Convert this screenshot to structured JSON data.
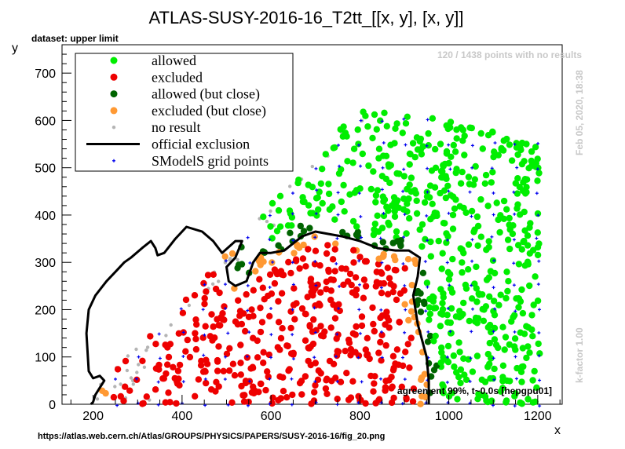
{
  "chart_data": {
    "type": "scatter",
    "title": "ATLAS-SUSY-2016-16_T2tt_[[x, y], [x, y]]",
    "subtitle": "dataset: upper limit",
    "xlabel": "x",
    "ylabel": "y",
    "xlim": [
      130,
      1255
    ],
    "ylim": [
      0,
      760
    ],
    "xticks": [
      200,
      400,
      600,
      800,
      1000,
      1200
    ],
    "yticks": [
      0,
      100,
      200,
      300,
      400,
      500,
      600,
      700
    ],
    "grid": false,
    "legend_placement": "top-left",
    "legend": [
      {
        "label": "allowed",
        "color": "#00ee00",
        "kind": "dot"
      },
      {
        "label": "excluded",
        "color": "#ee0000",
        "kind": "dot"
      },
      {
        "label": "allowed (but close)",
        "color": "#006400",
        "kind": "dot"
      },
      {
        "label": "excluded (but close)",
        "color": "#ff9933",
        "kind": "dot"
      },
      {
        "label": "no result",
        "color": "#b4b4b4",
        "kind": "small-dot"
      },
      {
        "label": "official exclusion",
        "color": "#000000",
        "kind": "line"
      },
      {
        "label": "SModelS grid points",
        "color": "#0000ee",
        "kind": "cross"
      }
    ],
    "annotations": {
      "no_results": "120 / 1438 points with no results",
      "timestamp": "Feb 05, 2020, 18:38",
      "kfactor": "k-factor 1.00",
      "agreement": "agreement 99%, t~0.0s [hepgpu01]",
      "source_url": "https://atlas.web.cern.ch/Atlas/GROUPS/PHYSICS/PAPERS/SUSY-2016-16/fig_20.png"
    },
    "official_exclusion": [
      [
        195,
        0
      ],
      [
        200,
        5
      ],
      [
        205,
        20
      ],
      [
        215,
        35
      ],
      [
        225,
        50
      ],
      [
        215,
        60
      ],
      [
        200,
        55
      ],
      [
        190,
        70
      ],
      [
        185,
        150
      ],
      [
        190,
        200
      ],
      [
        205,
        230
      ],
      [
        230,
        260
      ],
      [
        255,
        285
      ],
      [
        270,
        300
      ],
      [
        285,
        310
      ],
      [
        310,
        330
      ],
      [
        330,
        345
      ],
      [
        340,
        330
      ],
      [
        345,
        315
      ],
      [
        360,
        320
      ],
      [
        385,
        350
      ],
      [
        410,
        375
      ],
      [
        445,
        365
      ],
      [
        470,
        345
      ],
      [
        490,
        320
      ],
      [
        520,
        345
      ],
      [
        535,
        345
      ],
      [
        520,
        310
      ],
      [
        500,
        290
      ],
      [
        505,
        260
      ],
      [
        520,
        250
      ],
      [
        545,
        260
      ],
      [
        560,
        300
      ],
      [
        575,
        320
      ],
      [
        600,
        320
      ],
      [
        630,
        325
      ],
      [
        650,
        340
      ],
      [
        670,
        355
      ],
      [
        700,
        365
      ],
      [
        730,
        360
      ],
      [
        760,
        355
      ],
      [
        800,
        345
      ],
      [
        840,
        330
      ],
      [
        880,
        325
      ],
      [
        910,
        325
      ],
      [
        935,
        310
      ],
      [
        930,
        270
      ],
      [
        920,
        230
      ],
      [
        930,
        170
      ],
      [
        950,
        100
      ],
      [
        955,
        50
      ],
      [
        955,
        0
      ]
    ],
    "regions": {
      "allowed": "points above the official exclusion contour (upper band) and x > 960",
      "excluded": "points below the official exclusion contour",
      "no_result": "near the diagonal and at small x"
    }
  }
}
